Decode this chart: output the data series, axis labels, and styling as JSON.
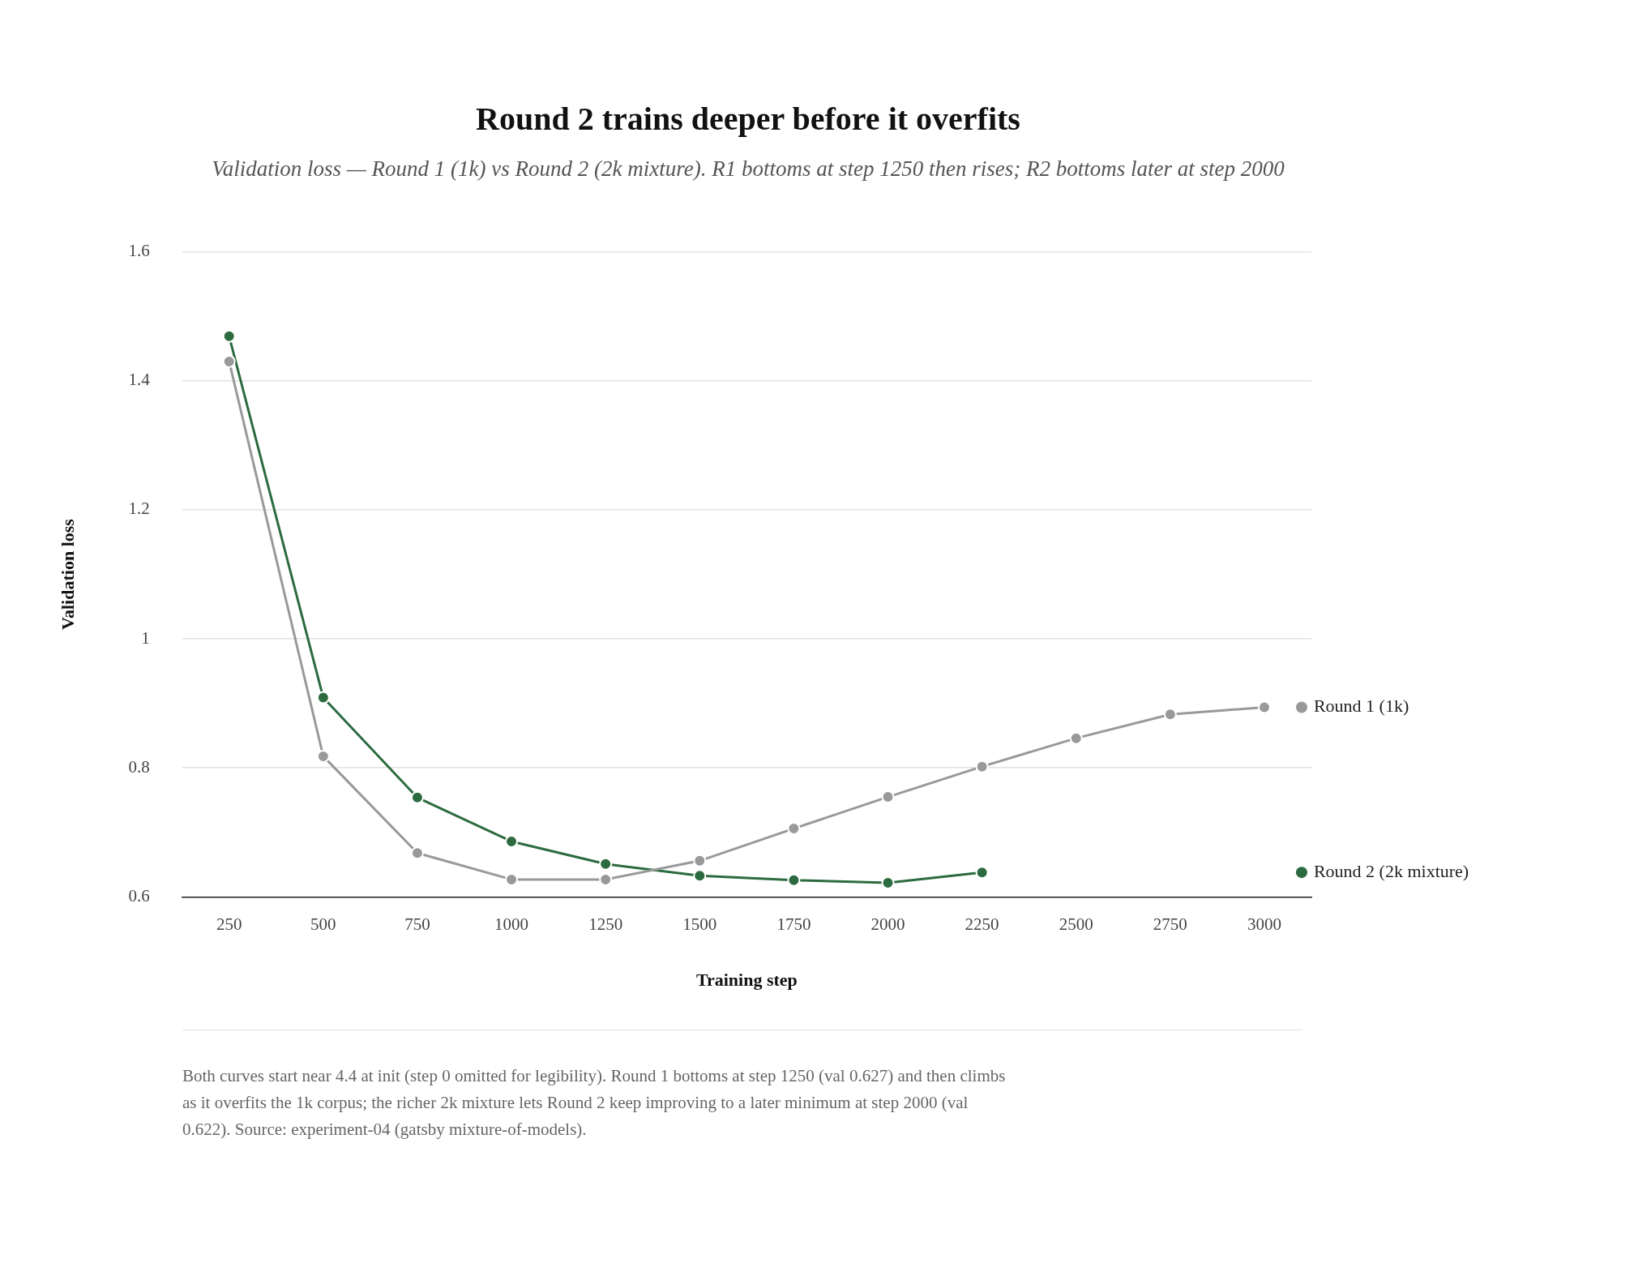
{
  "chart_data": {
    "type": "line",
    "title": "Round 2 trains deeper before it overfits",
    "subtitle": "Validation loss — Round 1 (1k) vs Round 2 (2k mixture). R1 bottoms at step 1250 then rises; R2 bottoms later at step 2000",
    "xlabel": "Training step",
    "ylabel": "Validation loss",
    "categories": [
      "250",
      "500",
      "750",
      "1000",
      "1250",
      "1500",
      "1750",
      "2000",
      "2250",
      "2500",
      "2750",
      "3000"
    ],
    "series": [
      {
        "name": "Round 1 (1k)",
        "color": "#999999",
        "values": [
          1.43,
          0.818,
          0.668,
          0.627,
          0.627,
          0.656,
          0.706,
          0.755,
          0.802,
          0.846,
          0.883,
          0.894
        ]
      },
      {
        "name": "Round 2 (2k mixture)",
        "color": "#2c6b3f",
        "values": [
          1.469,
          0.909,
          0.754,
          0.686,
          0.651,
          0.633,
          0.626,
          0.622,
          0.638,
          null,
          null,
          null
        ]
      }
    ],
    "ylim": [
      0.6,
      1.6
    ],
    "yticks": [
      0.6,
      0.8,
      1,
      1.2,
      1.4,
      1.6
    ],
    "grid": "y",
    "legend": "right",
    "marker": "circle",
    "line_style": "solid",
    "annotations": [
      "Both curves start near 4.4 at init (step 0 omitted for legibility). Round 1 bottoms at step 1250 (val 0.627) and then climbs as it overfits the 1k corpus; the richer 2k mixture lets Round 2 keep improving to a later minimum at step 2000 (val 0.622). Source: experiment-04 (gatsby mixture-of-models)."
    ]
  }
}
